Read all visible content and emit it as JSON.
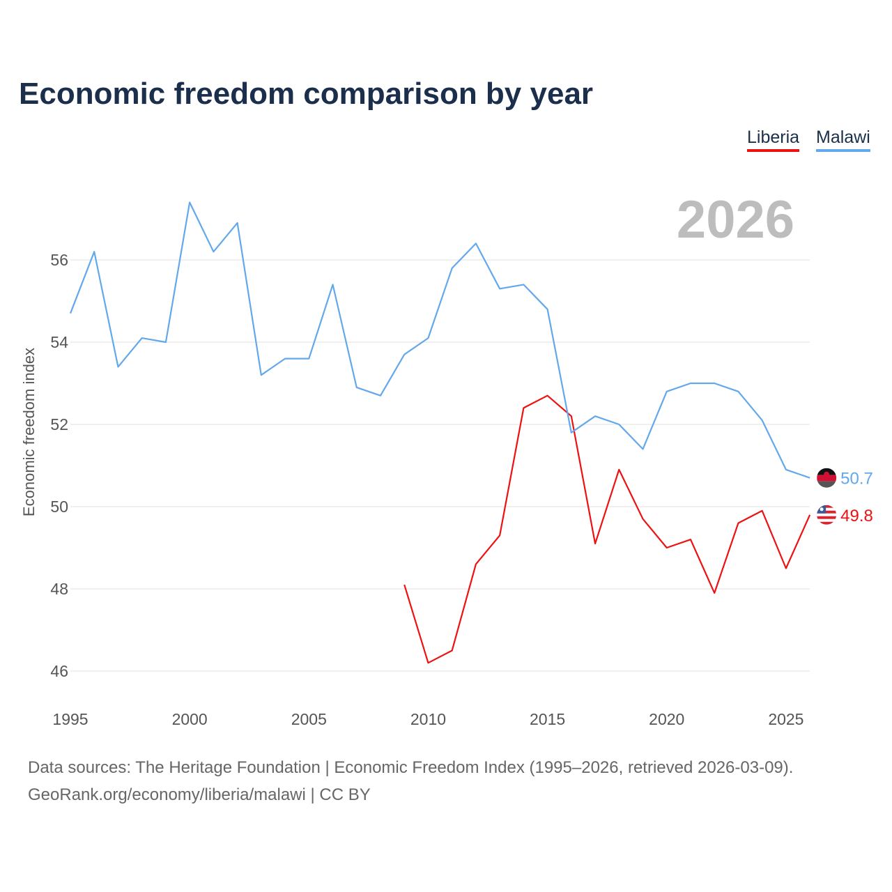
{
  "title": "Economic freedom comparison by year",
  "current_year": "2026",
  "footer": {
    "line1": "Data sources: The Heritage Foundation | Economic Freedom Index (1995–2026, retrieved 2026-03-09).",
    "line2": "GeoRank.org/economy/liberia/malawi | CC BY"
  },
  "chart_data": {
    "type": "line",
    "title": "Economic freedom comparison by year",
    "xlabel": "",
    "ylabel": "Economic freedom index",
    "xlim": [
      1995,
      2026
    ],
    "ylim": [
      45.5,
      57.6
    ],
    "xticks": [
      1995,
      2000,
      2005,
      2010,
      2015,
      2020,
      2025
    ],
    "yticks": [
      46,
      48,
      50,
      52,
      54,
      56
    ],
    "grid": true,
    "legend_position": "top-right",
    "series": [
      {
        "name": "Liberia",
        "color": "#ee1111",
        "end_label": "49.8",
        "flag": "liberia-flag-icon",
        "x": [
          2009,
          2010,
          2011,
          2012,
          2013,
          2014,
          2015,
          2016,
          2017,
          2018,
          2019,
          2020,
          2021,
          2022,
          2023,
          2024,
          2025,
          2026
        ],
        "values": [
          48.1,
          46.2,
          46.5,
          48.6,
          49.3,
          52.4,
          52.7,
          52.2,
          49.1,
          50.9,
          49.7,
          49.0,
          49.2,
          47.9,
          49.6,
          49.9,
          48.5,
          49.8
        ]
      },
      {
        "name": "Malawi",
        "color": "#62a8ea",
        "end_label": "50.7",
        "flag": "malawi-flag-icon",
        "x": [
          1995,
          1996,
          1997,
          1998,
          1999,
          2000,
          2001,
          2002,
          2003,
          2004,
          2005,
          2006,
          2007,
          2008,
          2009,
          2010,
          2011,
          2012,
          2013,
          2014,
          2015,
          2016,
          2017,
          2018,
          2019,
          2020,
          2021,
          2022,
          2023,
          2024,
          2025,
          2026
        ],
        "values": [
          54.7,
          56.2,
          53.4,
          54.1,
          54.0,
          57.4,
          56.2,
          56.9,
          53.2,
          53.6,
          53.6,
          55.4,
          52.9,
          52.7,
          53.7,
          54.1,
          55.8,
          56.4,
          55.3,
          55.4,
          54.8,
          51.8,
          52.2,
          52.0,
          51.4,
          52.8,
          53.0,
          53.0,
          52.8,
          52.1,
          50.9,
          50.7
        ]
      }
    ]
  }
}
